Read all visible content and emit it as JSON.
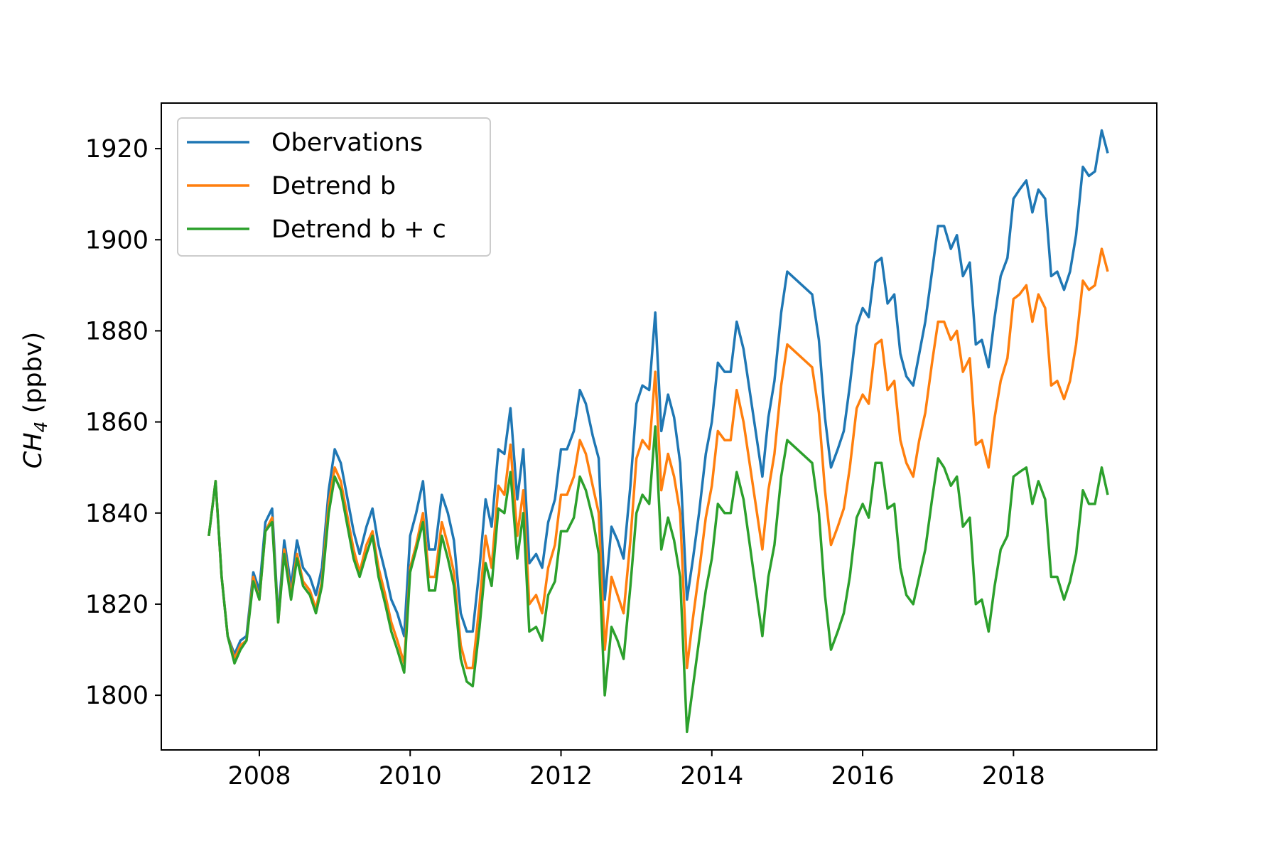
{
  "chart_data": {
    "type": "line",
    "title": "",
    "xlabel": "",
    "ylabel": {
      "main": "CH",
      "subscript": "4",
      "unit": " (ppbv)"
    },
    "xlim": [
      2006.7,
      2019.9
    ],
    "ylim": [
      1788,
      1930
    ],
    "x_ticks": [
      2008,
      2010,
      2012,
      2014,
      2016,
      2018
    ],
    "x_tick_labels": [
      "2008",
      "2010",
      "2012",
      "2014",
      "2016",
      "2018"
    ],
    "y_ticks": [
      1800,
      1820,
      1840,
      1860,
      1880,
      1900,
      1920
    ],
    "y_tick_labels": [
      "1800",
      "1820",
      "1840",
      "1860",
      "1880",
      "1900",
      "1920"
    ],
    "grid": false,
    "legend_position": "top-left",
    "x": [
      2007.33,
      2007.42,
      2007.5,
      2007.58,
      2007.67,
      2007.75,
      2007.83,
      2007.92,
      2008.0,
      2008.08,
      2008.17,
      2008.25,
      2008.33,
      2008.42,
      2008.5,
      2008.58,
      2008.67,
      2008.75,
      2008.83,
      2008.92,
      2009.0,
      2009.08,
      2009.17,
      2009.25,
      2009.33,
      2009.42,
      2009.5,
      2009.58,
      2009.67,
      2009.75,
      2009.83,
      2009.92,
      2010.0,
      2010.08,
      2010.17,
      2010.25,
      2010.33,
      2010.42,
      2010.5,
      2010.58,
      2010.67,
      2010.75,
      2010.83,
      2010.92,
      2011.0,
      2011.08,
      2011.17,
      2011.25,
      2011.33,
      2011.42,
      2011.5,
      2011.58,
      2011.67,
      2011.75,
      2011.83,
      2011.92,
      2012.0,
      2012.08,
      2012.17,
      2012.25,
      2012.33,
      2012.42,
      2012.5,
      2012.58,
      2012.67,
      2012.75,
      2012.83,
      2012.92,
      2013.0,
      2013.08,
      2013.17,
      2013.25,
      2013.33,
      2013.42,
      2013.5,
      2013.58,
      2013.67,
      2013.75,
      2013.83,
      2013.92,
      2014.0,
      2014.08,
      2014.17,
      2014.25,
      2014.33,
      2014.42,
      2014.67,
      2014.75,
      2014.83,
      2014.92,
      2015.0,
      2015.33,
      2015.42,
      2015.5,
      2015.58,
      2015.67,
      2015.75,
      2015.83,
      2015.92,
      2016.0,
      2016.08,
      2016.17,
      2016.25,
      2016.33,
      2016.42,
      2016.5,
      2016.58,
      2016.67,
      2016.75,
      2016.83,
      2016.92,
      2017.0,
      2017.08,
      2017.17,
      2017.25,
      2017.33,
      2017.42,
      2017.5,
      2017.58,
      2017.67,
      2017.75,
      2017.83,
      2017.92,
      2018.0,
      2018.08,
      2018.17,
      2018.25,
      2018.33,
      2018.42,
      2018.5,
      2018.58,
      2018.67,
      2018.75,
      2018.83,
      2018.92,
      2019.0,
      2019.08,
      2019.17,
      2019.25
    ],
    "series": [
      {
        "name": "Obervations",
        "color": "#1f77b4",
        "values": [
          1835,
          1847,
          1826,
          1813,
          1809,
          1812,
          1813,
          1827,
          1823,
          1838,
          1841,
          1817,
          1834,
          1824,
          1834,
          1828,
          1826,
          1822,
          1828,
          1845,
          1854,
          1851,
          1843,
          1836,
          1831,
          1837,
          1841,
          1833,
          1827,
          1821,
          1818,
          1813,
          1835,
          1840,
          1847,
          1832,
          1832,
          1844,
          1840,
          1834,
          1818,
          1814,
          1814,
          1828,
          1843,
          1837,
          1854,
          1853,
          1863,
          1843,
          1854,
          1829,
          1831,
          1828,
          1838,
          1843,
          1854,
          1854,
          1858,
          1867,
          1864,
          1857,
          1852,
          1821,
          1837,
          1834,
          1830,
          1846,
          1864,
          1868,
          1867,
          1884,
          1858,
          1866,
          1861,
          1851,
          1821,
          1830,
          1840,
          1853,
          1860,
          1873,
          1871,
          1871,
          1882,
          1876,
          1848,
          1861,
          1869,
          1884,
          1893,
          1888,
          1878,
          1861,
          1850,
          1854,
          1858,
          1868,
          1881,
          1885,
          1883,
          1895,
          1896,
          1886,
          1888,
          1875,
          1870,
          1868,
          1875,
          1882,
          1893,
          1903,
          1903,
          1898,
          1901,
          1892,
          1895,
          1877,
          1878,
          1872,
          1883,
          1892,
          1896,
          1909,
          1911,
          1913,
          1906,
          1911,
          1909,
          1892,
          1893,
          1889,
          1893,
          1901,
          1916,
          1914,
          1915,
          1924,
          1919
        ]
      },
      {
        "name": "Detrend b",
        "color": "#ff7f0e",
        "values": [
          1835,
          1847,
          1826,
          1813,
          1808,
          1811,
          1812,
          1826,
          1821,
          1836,
          1839,
          1816,
          1832,
          1822,
          1831,
          1825,
          1823,
          1819,
          1825,
          1842,
          1850,
          1847,
          1839,
          1832,
          1827,
          1833,
          1836,
          1828,
          1822,
          1816,
          1812,
          1807,
          1828,
          1833,
          1840,
          1826,
          1826,
          1838,
          1833,
          1827,
          1811,
          1806,
          1806,
          1820,
          1835,
          1828,
          1846,
          1844,
          1855,
          1835,
          1845,
          1820,
          1822,
          1818,
          1828,
          1833,
          1844,
          1844,
          1848,
          1856,
          1853,
          1846,
          1840,
          1810,
          1826,
          1822,
          1818,
          1834,
          1852,
          1856,
          1854,
          1871,
          1845,
          1853,
          1848,
          1840,
          1806,
          1817,
          1827,
          1839,
          1846,
          1858,
          1856,
          1856,
          1867,
          1860,
          1832,
          1845,
          1853,
          1868,
          1877,
          1872,
          1862,
          1845,
          1833,
          1837,
          1841,
          1850,
          1863,
          1866,
          1864,
          1877,
          1878,
          1867,
          1869,
          1856,
          1851,
          1848,
          1856,
          1862,
          1873,
          1882,
          1882,
          1878,
          1880,
          1871,
          1874,
          1855,
          1856,
          1850,
          1861,
          1869,
          1874,
          1887,
          1888,
          1890,
          1882,
          1888,
          1885,
          1868,
          1869,
          1865,
          1869,
          1877,
          1891,
          1889,
          1890,
          1898,
          1893
        ]
      },
      {
        "name": "Detrend b + c",
        "color": "#2ca02c",
        "values": [
          1835,
          1847,
          1826,
          1813,
          1807,
          1810,
          1812,
          1825,
          1821,
          1836,
          1838,
          1816,
          1831,
          1821,
          1830,
          1824,
          1822,
          1818,
          1824,
          1840,
          1848,
          1845,
          1837,
          1830,
          1826,
          1831,
          1835,
          1826,
          1820,
          1814,
          1810,
          1805,
          1827,
          1832,
          1838,
          1823,
          1823,
          1835,
          1830,
          1824,
          1808,
          1803,
          1802,
          1815,
          1829,
          1824,
          1841,
          1840,
          1849,
          1830,
          1840,
          1814,
          1815,
          1812,
          1822,
          1825,
          1836,
          1836,
          1839,
          1848,
          1845,
          1839,
          1831,
          1800,
          1815,
          1812,
          1808,
          1824,
          1840,
          1844,
          1842,
          1859,
          1832,
          1839,
          1834,
          1826,
          1792,
          1802,
          1812,
          1823,
          1830,
          1842,
          1840,
          1840,
          1849,
          1843,
          1813,
          1826,
          1833,
          1848,
          1856,
          1851,
          1840,
          1822,
          1810,
          1814,
          1818,
          1826,
          1839,
          1842,
          1839,
          1851,
          1851,
          1841,
          1842,
          1828,
          1822,
          1820,
          1826,
          1832,
          1843,
          1852,
          1850,
          1846,
          1848,
          1837,
          1839,
          1820,
          1821,
          1814,
          1824,
          1832,
          1835,
          1848,
          1849,
          1850,
          1842,
          1847,
          1843,
          1826,
          1826,
          1821,
          1825,
          1831,
          1845,
          1842,
          1842,
          1850,
          1844
        ]
      }
    ]
  }
}
